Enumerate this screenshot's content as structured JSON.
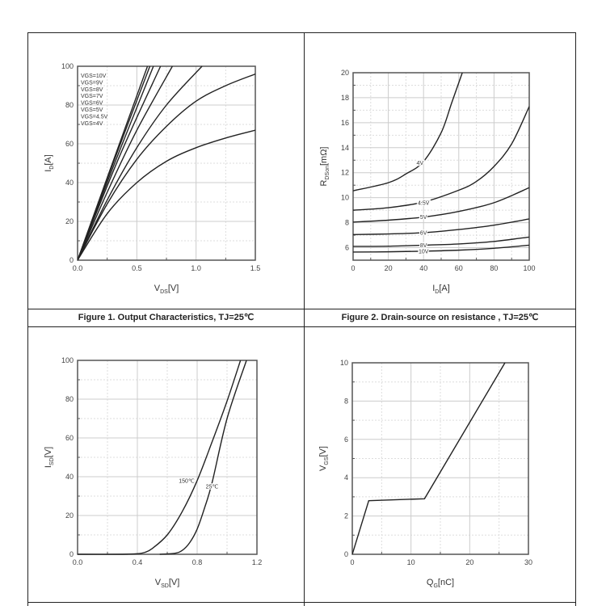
{
  "captions": [
    "Figure 1. Output Characteristics, TJ=25℃",
    "Figure 2. Drain-source on resistance , TJ=25℃"
  ],
  "chart_data": [
    {
      "type": "line",
      "title": "Figure 1. Output Characteristics, TJ=25℃",
      "xlabel": {
        "main": "V",
        "sub": "DS",
        "unit": "[V]"
      },
      "ylabel": {
        "main": "I",
        "sub": "D",
        "unit": "[A]"
      },
      "xlim": [
        0,
        1.5
      ],
      "ylim": [
        0,
        100
      ],
      "xticks": [
        0,
        0.5,
        1.0,
        1.5
      ],
      "xtick_labels": [
        "0.0",
        "0.5",
        "1.0",
        "1.5"
      ],
      "yticks": [
        0,
        20,
        40,
        60,
        80,
        100
      ],
      "ytick_labels": [
        "0",
        "20",
        "40",
        "60",
        "80",
        "100"
      ],
      "xminor": [
        0.25,
        0.75,
        1.25
      ],
      "yminor": [
        10,
        30,
        50,
        70,
        90
      ],
      "grid": true,
      "legend": {
        "placement": "top-left",
        "entries": [
          "VGS=10V",
          "VGS=9V",
          "VGS=8V",
          "VGS=7V",
          "VGS=6V",
          "VGS=5V",
          "VGS=4.5V",
          "VGS=4V"
        ]
      },
      "series": [
        {
          "name": "VGS=10V",
          "points": [
            [
              0,
              0
            ],
            [
              0.3,
              51
            ],
            [
              0.59,
              100
            ]
          ]
        },
        {
          "name": "VGS=9V",
          "points": [
            [
              0,
              0
            ],
            [
              0.3,
              50
            ],
            [
              0.61,
              100
            ]
          ]
        },
        {
          "name": "VGS=8V",
          "points": [
            [
              0,
              0
            ],
            [
              0.3,
              48
            ],
            [
              0.64,
              100
            ]
          ]
        },
        {
          "name": "VGS=7V",
          "points": [
            [
              0,
              0
            ],
            [
              0.35,
              53
            ],
            [
              0.7,
              100
            ]
          ]
        },
        {
          "name": "VGS=6V",
          "points": [
            [
              0,
              0
            ],
            [
              0.25,
              35
            ],
            [
              0.5,
              67
            ],
            [
              0.8,
              100
            ]
          ]
        },
        {
          "name": "VGS=5V",
          "points": [
            [
              0,
              0
            ],
            [
              0.25,
              31
            ],
            [
              0.5,
              58
            ],
            [
              0.75,
              80
            ],
            [
              1.05,
              100
            ]
          ]
        },
        {
          "name": "VGS=4.5V",
          "points": [
            [
              0,
              0
            ],
            [
              0.25,
              29
            ],
            [
              0.5,
              52
            ],
            [
              0.75,
              69
            ],
            [
              1.0,
              82
            ],
            [
              1.25,
              90
            ],
            [
              1.5,
              96
            ]
          ]
        },
        {
          "name": "VGS=4V",
          "points": [
            [
              0,
              0
            ],
            [
              0.25,
              24
            ],
            [
              0.5,
              40
            ],
            [
              0.75,
              51
            ],
            [
              1.0,
              58
            ],
            [
              1.25,
              63
            ],
            [
              1.5,
              67
            ]
          ]
        }
      ]
    },
    {
      "type": "line",
      "title": "Figure 2. Drain-source on resistance , TJ=25℃",
      "xlabel": {
        "main": "I",
        "sub": "D",
        "unit": "[A]"
      },
      "ylabel": {
        "main": "R",
        "sub": "DSon",
        "unit": "[mΩ]"
      },
      "xlim": [
        0,
        100
      ],
      "ylim": [
        5,
        20
      ],
      "xticks": [
        0,
        20,
        40,
        60,
        80,
        100
      ],
      "xtick_labels": [
        "0",
        "20",
        "40",
        "60",
        "80",
        "100"
      ],
      "yticks": [
        6,
        8,
        10,
        12,
        14,
        16,
        18,
        20
      ],
      "ytick_labels": [
        "6",
        "8",
        "10",
        "12",
        "14",
        "16",
        "18",
        "20"
      ],
      "xminor": [
        10,
        30,
        50,
        70,
        90
      ],
      "yminor": [
        7,
        9,
        11,
        13,
        15,
        17,
        19
      ],
      "grid": true,
      "series": [
        {
          "name": "4V",
          "label_at": [
            38,
            12.8
          ],
          "points": [
            [
              0,
              10.55
            ],
            [
              20,
              11.2
            ],
            [
              30,
              11.9
            ],
            [
              40,
              12.9
            ],
            [
              50,
              15.2
            ],
            [
              56,
              17.6
            ],
            [
              62,
              20
            ]
          ]
        },
        {
          "name": "4.5V",
          "label_at": [
            40,
            9.6
          ],
          "points": [
            [
              0,
              9
            ],
            [
              20,
              9.2
            ],
            [
              40,
              9.65
            ],
            [
              60,
              10.6
            ],
            [
              70,
              11.3
            ],
            [
              80,
              12.5
            ],
            [
              90,
              14.3
            ],
            [
              100,
              17.3
            ]
          ]
        },
        {
          "name": "5V",
          "label_at": [
            40,
            8.45
          ],
          "points": [
            [
              0,
              8.05
            ],
            [
              20,
              8.2
            ],
            [
              40,
              8.45
            ],
            [
              60,
              8.9
            ],
            [
              80,
              9.6
            ],
            [
              100,
              10.8
            ]
          ]
        },
        {
          "name": "6V",
          "label_at": [
            40,
            7.2
          ],
          "points": [
            [
              0,
              7.05
            ],
            [
              20,
              7.1
            ],
            [
              40,
              7.2
            ],
            [
              60,
              7.45
            ],
            [
              80,
              7.8
            ],
            [
              100,
              8.3
            ]
          ]
        },
        {
          "name": "8V",
          "label_at": [
            40,
            6.2
          ],
          "points": [
            [
              0,
              6.1
            ],
            [
              20,
              6.12
            ],
            [
              40,
              6.2
            ],
            [
              60,
              6.3
            ],
            [
              80,
              6.5
            ],
            [
              100,
              6.85
            ]
          ]
        },
        {
          "name": "10V",
          "label_at": [
            40,
            5.72
          ],
          "points": [
            [
              0,
              5.65
            ],
            [
              20,
              5.67
            ],
            [
              40,
              5.72
            ],
            [
              60,
              5.8
            ],
            [
              80,
              5.95
            ],
            [
              100,
              6.2
            ]
          ]
        }
      ]
    },
    {
      "type": "line",
      "xlabel": {
        "main": "V",
        "sub": "SD",
        "unit": "[V]"
      },
      "ylabel": {
        "main": "I",
        "sub": "SD",
        "unit": "[V]"
      },
      "xlim": [
        0,
        1.2
      ],
      "ylim": [
        0,
        100
      ],
      "xticks": [
        0,
        0.4,
        0.8,
        1.2
      ],
      "xtick_labels": [
        "0.0",
        "0.4",
        "0.8",
        "1.2"
      ],
      "yticks": [
        0,
        20,
        40,
        60,
        80,
        100
      ],
      "ytick_labels": [
        "0",
        "20",
        "40",
        "60",
        "80",
        "100"
      ],
      "xminor": [
        0.2,
        0.6,
        1.0
      ],
      "yminor": [
        10,
        30,
        50,
        70,
        90
      ],
      "grid": true,
      "series": [
        {
          "name": "150℃",
          "label_at": [
            0.73,
            38
          ],
          "points": [
            [
              0,
              0
            ],
            [
              0.3,
              0
            ],
            [
              0.4,
              0.3
            ],
            [
              0.45,
              1
            ],
            [
              0.5,
              3
            ],
            [
              0.6,
              10
            ],
            [
              0.7,
              22
            ],
            [
              0.8,
              38
            ],
            [
              0.9,
              58
            ],
            [
              1.0,
              79
            ],
            [
              1.09,
              100
            ]
          ]
        },
        {
          "name": "25℃",
          "label_at": [
            0.9,
            35
          ],
          "points": [
            [
              0.55,
              0
            ],
            [
              0.65,
              0.5
            ],
            [
              0.7,
              2
            ],
            [
              0.75,
              6
            ],
            [
              0.8,
              13
            ],
            [
              0.85,
              24
            ],
            [
              0.9,
              37
            ],
            [
              1.0,
              70
            ],
            [
              1.13,
              100
            ]
          ]
        }
      ]
    },
    {
      "type": "line",
      "xlabel": {
        "main": "Q",
        "sub": "G",
        "unit": "[nC]"
      },
      "ylabel": {
        "main": "V",
        "sub": "GS",
        "unit": "[V]"
      },
      "xlim": [
        0,
        30
      ],
      "ylim": [
        0,
        10
      ],
      "xticks": [
        0,
        10,
        20,
        30
      ],
      "xtick_labels": [
        "0",
        "10",
        "20",
        "30"
      ],
      "yticks": [
        0,
        2,
        4,
        6,
        8,
        10
      ],
      "ytick_labels": [
        "0",
        "2",
        "4",
        "6",
        "8",
        "10"
      ],
      "xminor": [
        5,
        15,
        25
      ],
      "yminor": [
        1,
        3,
        5,
        7,
        9
      ],
      "grid": true,
      "series": [
        {
          "name": "",
          "straight": true,
          "points": [
            [
              0,
              0
            ],
            [
              2.8,
              2.8
            ],
            [
              12.3,
              2.9
            ],
            [
              26,
              10
            ]
          ]
        }
      ]
    }
  ]
}
